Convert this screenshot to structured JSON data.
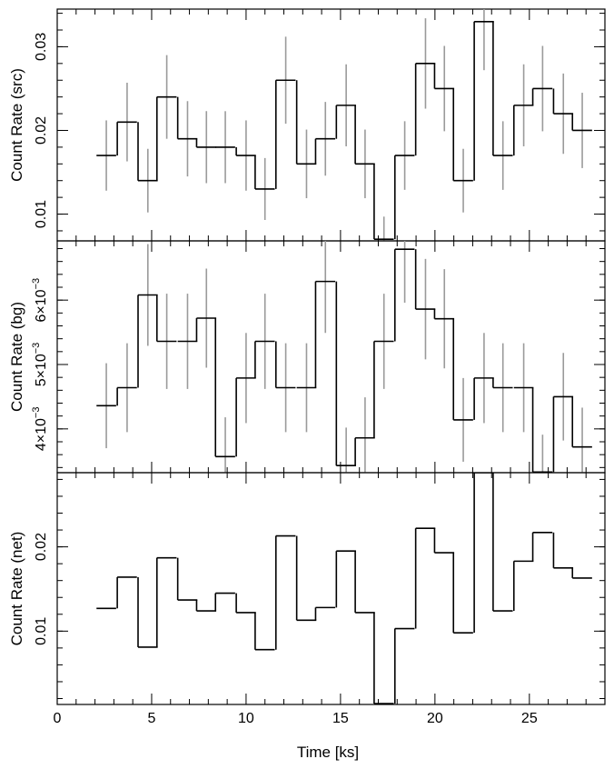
{
  "chart_data": {
    "type": "line",
    "style": "step-with-error-bars",
    "x": [
      2.6,
      3.7,
      4.8,
      5.8,
      6.9,
      7.9,
      8.9,
      10.0,
      11.0,
      12.1,
      13.2,
      14.2,
      15.3,
      16.3,
      17.3,
      18.4,
      19.5,
      20.5,
      21.5,
      22.6,
      23.6,
      24.7,
      25.7,
      26.8,
      27.8
    ],
    "x_bin_half_width": 0.52,
    "xlabel": "Time [ks]",
    "xlim": [
      0,
      29
    ],
    "x_ticks": [
      0,
      5,
      10,
      15,
      20,
      25
    ],
    "panels": [
      {
        "name": "src",
        "ylabel": "Count Rate (src)",
        "ylim": [
          0.0068,
          0.0345
        ],
        "y_ticks": [
          0.01,
          0.02,
          0.03
        ],
        "y_tick_labels": [
          "0.01",
          "0.02",
          "0.03"
        ],
        "values": [
          0.017,
          0.021,
          0.014,
          0.024,
          0.019,
          0.018,
          0.018,
          0.017,
          0.013,
          0.026,
          0.016,
          0.019,
          0.023,
          0.016,
          0.007,
          0.017,
          0.028,
          0.025,
          0.014,
          0.033,
          0.017,
          0.023,
          0.025,
          0.022,
          0.02
        ],
        "errors": [
          0.0042,
          0.0047,
          0.0038,
          0.005,
          0.0045,
          0.0043,
          0.0043,
          0.0042,
          0.0037,
          0.0052,
          0.0041,
          0.0044,
          0.0049,
          0.0041,
          0.0027,
          0.0041,
          0.0054,
          0.0051,
          0.0038,
          0.0058,
          0.0041,
          0.0049,
          0.0051,
          0.0048,
          0.0045
        ]
      },
      {
        "name": "bg",
        "ylabel": "Count Rate (bg)",
        "ylim": [
          0.00332,
          0.00692
        ],
        "y_ticks": [
          0.004,
          0.005,
          0.006
        ],
        "y_tick_labels": [
          "4×10⁻³",
          "5×10⁻³",
          "6×10⁻³"
        ],
        "values": [
          0.00436,
          0.00464,
          0.00608,
          0.00536,
          0.00536,
          0.00572,
          0.00357,
          0.00479,
          0.00536,
          0.00464,
          0.00464,
          0.00629,
          0.00343,
          0.00386,
          0.00536,
          0.00679,
          0.00586,
          0.00571,
          0.00414,
          0.00479,
          0.00464,
          0.00464,
          0.00333,
          0.0045,
          0.00372
        ],
        "errors": [
          0.00066,
          0.00069,
          0.00079,
          0.00074,
          0.00074,
          0.00077,
          0.00061,
          0.0007,
          0.00074,
          0.00069,
          0.00069,
          0.0008,
          0.00059,
          0.00063,
          0.00074,
          0.00083,
          0.00078,
          0.00077,
          0.00065,
          0.0007,
          0.00069,
          0.00069,
          0.00058,
          0.00068,
          0.00061
        ]
      },
      {
        "name": "net",
        "ylabel": "Count Rate (net)",
        "ylim": [
          0.0013,
          0.0288
        ],
        "y_ticks": [
          0.01,
          0.02
        ],
        "y_tick_labels": [
          "0.01",
          "0.02"
        ],
        "values": [
          0.0127,
          0.0164,
          0.0081,
          0.0187,
          0.0137,
          0.0124,
          0.0145,
          0.0122,
          0.0078,
          0.0213,
          0.0113,
          0.0128,
          0.0195,
          0.0122,
          0.0014,
          0.0103,
          0.0222,
          0.0193,
          0.0098,
          0.0288,
          0.0124,
          0.0183,
          0.0217,
          0.0175,
          0.0163
        ]
      }
    ]
  }
}
